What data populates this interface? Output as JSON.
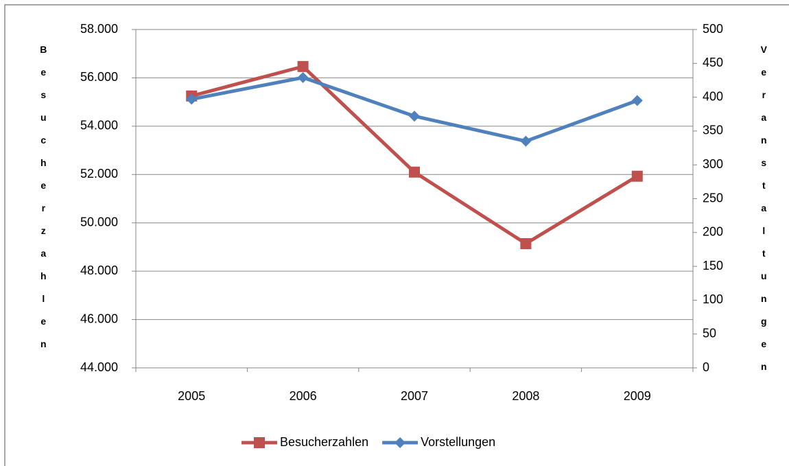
{
  "chart_data": {
    "type": "line",
    "categories": [
      "2005",
      "2006",
      "2007",
      "2008",
      "2009"
    ],
    "y_label": "Besucherzahlen",
    "y2_label": "Veranstaltungen",
    "ylim": [
      44000,
      58000
    ],
    "yticks": [
      {
        "value": 44000,
        "label": "44.000"
      },
      {
        "value": 46000,
        "label": "46.000"
      },
      {
        "value": 48000,
        "label": "48.000"
      },
      {
        "value": 50000,
        "label": "50.000"
      },
      {
        "value": 52000,
        "label": "52.000"
      },
      {
        "value": 54000,
        "label": "54.000"
      },
      {
        "value": 56000,
        "label": "56.000"
      },
      {
        "value": 58000,
        "label": "58.000"
      }
    ],
    "y2lim": [
      0,
      500
    ],
    "y2ticks": [
      0,
      50,
      100,
      150,
      200,
      250,
      300,
      350,
      400,
      450,
      500
    ],
    "grid": true,
    "legend": "bottom",
    "series": [
      {
        "name": "Besucherzahlen",
        "color": "#c0504d",
        "marker": "square",
        "values": [
          55250,
          56470,
          52100,
          49140,
          51930
        ]
      },
      {
        "name": "Vorstellungen",
        "color": "#4f81bd",
        "marker": "diamond",
        "axis": "y2",
        "values": [
          397,
          429,
          372,
          335,
          395
        ]
      }
    ]
  }
}
